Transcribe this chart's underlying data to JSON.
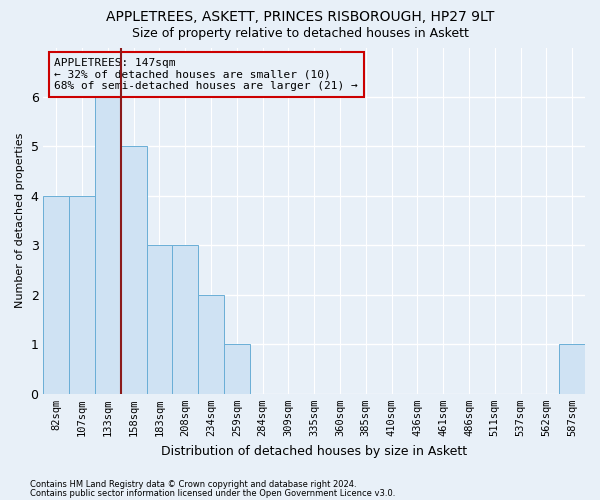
{
  "title": "APPLETREES, ASKETT, PRINCES RISBOROUGH, HP27 9LT",
  "subtitle": "Size of property relative to detached houses in Askett",
  "xlabel": "Distribution of detached houses by size in Askett",
  "ylabel": "Number of detached properties",
  "categories": [
    "82sqm",
    "107sqm",
    "133sqm",
    "158sqm",
    "183sqm",
    "208sqm",
    "234sqm",
    "259sqm",
    "284sqm",
    "309sqm",
    "335sqm",
    "360sqm",
    "385sqm",
    "410sqm",
    "436sqm",
    "461sqm",
    "486sqm",
    "511sqm",
    "537sqm",
    "562sqm",
    "587sqm"
  ],
  "values": [
    4,
    4,
    6,
    5,
    3,
    3,
    2,
    1,
    0,
    0,
    0,
    0,
    0,
    0,
    0,
    0,
    0,
    0,
    0,
    0,
    1
  ],
  "bar_color": "#cfe2f3",
  "bar_edge_color": "#6aaed6",
  "vline_x": 2.5,
  "vline_color": "#8b1a1a",
  "annotation_text": "APPLETREES: 147sqm\n← 32% of detached houses are smaller (10)\n68% of semi-detached houses are larger (21) →",
  "annotation_box_color": "#cc0000",
  "ylim": [
    0,
    7
  ],
  "yticks": [
    0,
    1,
    2,
    3,
    4,
    5,
    6
  ],
  "footnote1": "Contains HM Land Registry data © Crown copyright and database right 2024.",
  "footnote2": "Contains public sector information licensed under the Open Government Licence v3.0.",
  "bg_color": "#e8f0f8",
  "grid_color": "#ffffff",
  "title_fontsize": 10,
  "subtitle_fontsize": 9,
  "xlabel_fontsize": 9,
  "ylabel_fontsize": 8,
  "bar_width": 1.0
}
